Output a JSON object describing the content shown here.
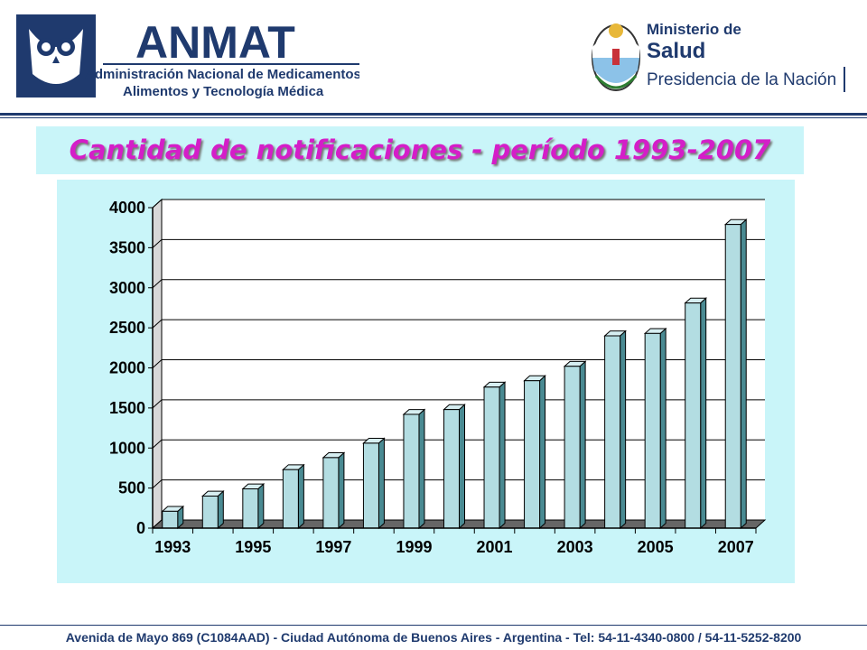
{
  "header": {
    "anmat_name": "ANMAT",
    "anmat_line1": "Administración Nacional de Medicamentos,",
    "anmat_line2": "Alimentos y Tecnología Médica",
    "ministry_line1": "Ministerio de",
    "ministry_line2": "Salud",
    "ministry_line3": "Presidencia de la Nación"
  },
  "title": "Cantidad de notificaciones - período 1993-2007",
  "footer": "Avenida de Mayo 869 (C1084AAD) - Ciudad Autónoma de Buenos Aires - Argentina - Tel: 54-11-4340-0800 / 54-11-5252-8200",
  "colors": {
    "bar_front": "#b3dde2",
    "bar_side": "#4a8a92",
    "panel_bg": "#c9f5f9",
    "title": "#d41ec8",
    "navy": "#1f3a6e"
  },
  "chart_data": {
    "type": "bar",
    "categories": [
      "1993",
      "1994",
      "1995",
      "1996",
      "1997",
      "1998",
      "1999",
      "2000",
      "2001",
      "2002",
      "2003",
      "2004",
      "2005",
      "2006",
      "2007"
    ],
    "x_tick_labels": [
      "1993",
      "",
      "1995",
      "",
      "1997",
      "",
      "1999",
      "",
      "2001",
      "",
      "2003",
      "",
      "2005",
      "",
      "2007"
    ],
    "values": [
      210,
      400,
      490,
      730,
      880,
      1060,
      1420,
      1480,
      1760,
      1840,
      2020,
      2400,
      2430,
      2810,
      3790
    ],
    "ylim": [
      0,
      4000
    ],
    "yticks": [
      0,
      500,
      1000,
      1500,
      2000,
      2500,
      3000,
      3500,
      4000
    ],
    "grid": true,
    "legend": "none",
    "style": "3d-column"
  }
}
